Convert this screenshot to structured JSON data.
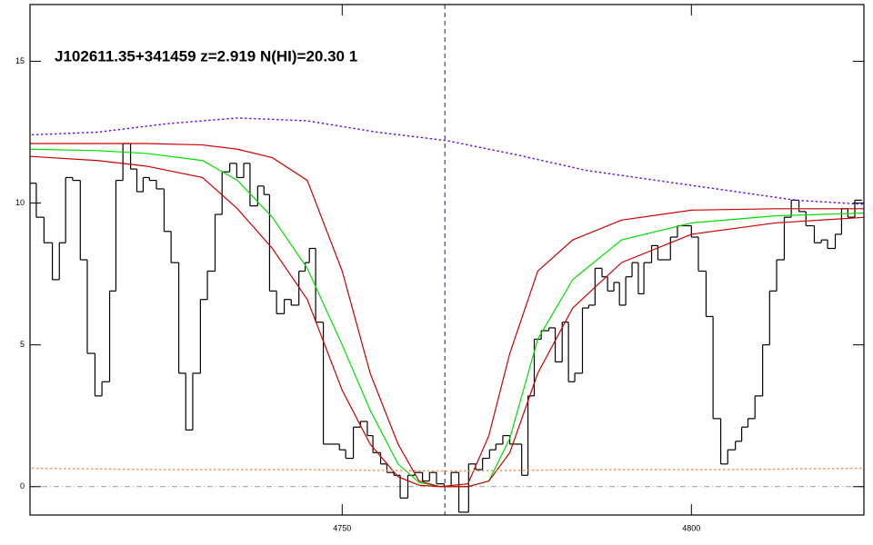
{
  "chart_data": {
    "type": "line",
    "annotation": "J102611.35+341459 z=2.919 N(HI)=20.30 1",
    "xlim": [
      4705.3,
      4824.7
    ],
    "ylim": [
      -1,
      17
    ],
    "xticks": [
      4750,
      4800
    ],
    "yticks": [
      0,
      5,
      10,
      15
    ],
    "vline": 4764.7,
    "vline_color": "#1a1a8c",
    "hline": 0,
    "hline_color": "#999999",
    "series": [
      {
        "style": "step",
        "color": "#000000",
        "x": [
          4705.3,
          4706.2,
          4707.3,
          4708.5,
          4709.5,
          4710.4,
          4711.4,
          4712.5,
          4713.5,
          4714.6,
          4715.6,
          4716.7,
          4717.6,
          4718.6,
          4719.7,
          4720.6,
          4721.5,
          4722.4,
          4723.4,
          4724.5,
          4725.5,
          4726.6,
          4727.6,
          4728.6,
          4729.7,
          4730.7,
          4731.8,
          4732.8,
          4733.9,
          4734.9,
          4735.9,
          4736.8,
          4737.9,
          4738.8,
          4739.6,
          4740.6,
          4741.7,
          4742.7,
          4743.8,
          4744.7,
          4745.3,
          4746.2,
          4747.3,
          4748.6,
          4749.6,
          4750.5,
          4751.6,
          4752.6,
          4753.6,
          4754.4,
          4755.5,
          4756.4,
          4757.4,
          4758.3,
          4759.4,
          4760.4,
          4761.5,
          4762.5,
          4763.5,
          4764.6,
          4765.6,
          4766.7,
          4768.1,
          4769.1,
          4770.1,
          4771.1,
          4772.0,
          4773.0,
          4774.0,
          4774.7,
          4775.7,
          4776.6,
          4777.5,
          4778.5,
          4779.6,
          4780.5,
          4781.5,
          4782.4,
          4783.3,
          4784.4,
          4785.3,
          4786.2,
          4787.2,
          4788.0,
          4788.9,
          4789.7,
          4790.6,
          4791.5,
          4792.4,
          4793.2,
          4794.3,
          4795.2,
          4796.1,
          4797.0,
          4798.0,
          4799.0,
          4800.0,
          4801.0,
          4802.1,
          4803.1,
          4804.2,
          4805.2,
          4806.3,
          4807.2,
          4808.1,
          4809.1,
          4810.2,
          4811.2,
          4812.2,
          4813.3,
          4814.3,
          4815.4,
          4816.4,
          4817.6,
          4818.6,
          4819.5,
          4820.6,
          4821.5,
          4822.4,
          4823.4
        ],
        "values": [
          10.7,
          9.5,
          8.6,
          7.3,
          8.6,
          10.9,
          10.8,
          8.0,
          4.7,
          3.2,
          3.7,
          6.9,
          10.8,
          12.1,
          11.2,
          10.4,
          10.9,
          10.8,
          10.5,
          9.0,
          7.9,
          4.0,
          2.0,
          4.0,
          6.6,
          7.6,
          9.6,
          11.1,
          11.4,
          10.9,
          11.4,
          9.9,
          10.6,
          10.3,
          6.9,
          6.1,
          6.6,
          6.4,
          7.6,
          7.9,
          8.4,
          5.8,
          1.5,
          1.5,
          1.3,
          1.0,
          2.1,
          2.3,
          1.8,
          1.2,
          0.8,
          0.5,
          0.4,
          -0.4,
          0.4,
          0.5,
          0.2,
          0.5,
          0.1,
          0.0,
          0.5,
          -0.9,
          0.8,
          0.6,
          1.0,
          1.3,
          1.5,
          1.8,
          1.5,
          1.5,
          0.4,
          3.2,
          5.2,
          5.5,
          5.6,
          4.4,
          5.8,
          3.7,
          4.0,
          6.3,
          6.4,
          7.7,
          7.4,
          6.9,
          7.2,
          6.4,
          7.4,
          7.9,
          6.8,
          7.9,
          8.5,
          8.0,
          8.0,
          8.8,
          9.2,
          9.2,
          8.8,
          7.6,
          6.0,
          2.4,
          0.8,
          1.3,
          1.6,
          2.1,
          2.4,
          3.2,
          5.0,
          6.9,
          8.0,
          9.5,
          10.1,
          9.7,
          9.2,
          8.6,
          8.7,
          8.4,
          8.9,
          9.8,
          9.5,
          10.1
        ]
      },
      {
        "style": "line",
        "color": "#00dd00",
        "x": [
          4705,
          4715,
          4722,
          4730,
          4735,
          4740,
          4745,
          4750,
          4754,
          4758,
          4761,
          4764,
          4768,
          4771,
          4774,
          4778,
          4783,
          4790,
          4800,
          4812,
          4825
        ],
        "values": [
          11.9,
          11.85,
          11.75,
          11.5,
          10.8,
          9.5,
          7.7,
          5.0,
          2.7,
          0.8,
          0.15,
          0.0,
          0.0,
          0.2,
          1.7,
          5.2,
          7.3,
          8.7,
          9.3,
          9.55,
          9.65
        ]
      },
      {
        "style": "line",
        "color": "#cc0000",
        "x": [
          4705,
          4715,
          4722,
          4730,
          4735,
          4740,
          4745,
          4750,
          4754,
          4758,
          4761,
          4764,
          4768,
          4771,
          4774,
          4778,
          4783,
          4790,
          4800,
          4812,
          4825
        ],
        "values": [
          12.1,
          12.1,
          12.1,
          12.05,
          11.9,
          11.6,
          10.8,
          7.6,
          4.0,
          1.5,
          0.2,
          0.0,
          0.1,
          1.8,
          4.7,
          7.6,
          8.7,
          9.4,
          9.75,
          9.8,
          9.8
        ]
      },
      {
        "style": "line",
        "color": "#cc0000",
        "x": [
          4705,
          4715,
          4722,
          4730,
          4735,
          4740,
          4745,
          4750,
          4754,
          4758,
          4761,
          4764,
          4768,
          4771,
          4774,
          4778,
          4783,
          4790,
          4800,
          4812,
          4825
        ],
        "values": [
          11.65,
          11.5,
          11.3,
          10.9,
          9.8,
          8.4,
          6.6,
          3.4,
          1.5,
          0.35,
          0.05,
          0.0,
          0.0,
          0.2,
          1.2,
          4.0,
          6.3,
          7.9,
          8.9,
          9.3,
          9.5
        ]
      },
      {
        "style": "dotted",
        "color": "#6600ff",
        "x": [
          4705,
          4715,
          4725,
          4735,
          4745,
          4755,
          4765,
          4775,
          4785,
          4795,
          4805,
          4815,
          4825
        ],
        "values": [
          12.4,
          12.5,
          12.8,
          13.0,
          12.9,
          12.5,
          12.2,
          11.7,
          11.15,
          10.8,
          10.45,
          10.1,
          9.95
        ]
      },
      {
        "style": "dotted",
        "color": "#ff8844",
        "x": [
          4705,
          4725,
          4745,
          4765,
          4785,
          4805,
          4825
        ],
        "values": [
          0.65,
          0.6,
          0.6,
          0.55,
          0.6,
          0.6,
          0.65
        ]
      }
    ]
  }
}
